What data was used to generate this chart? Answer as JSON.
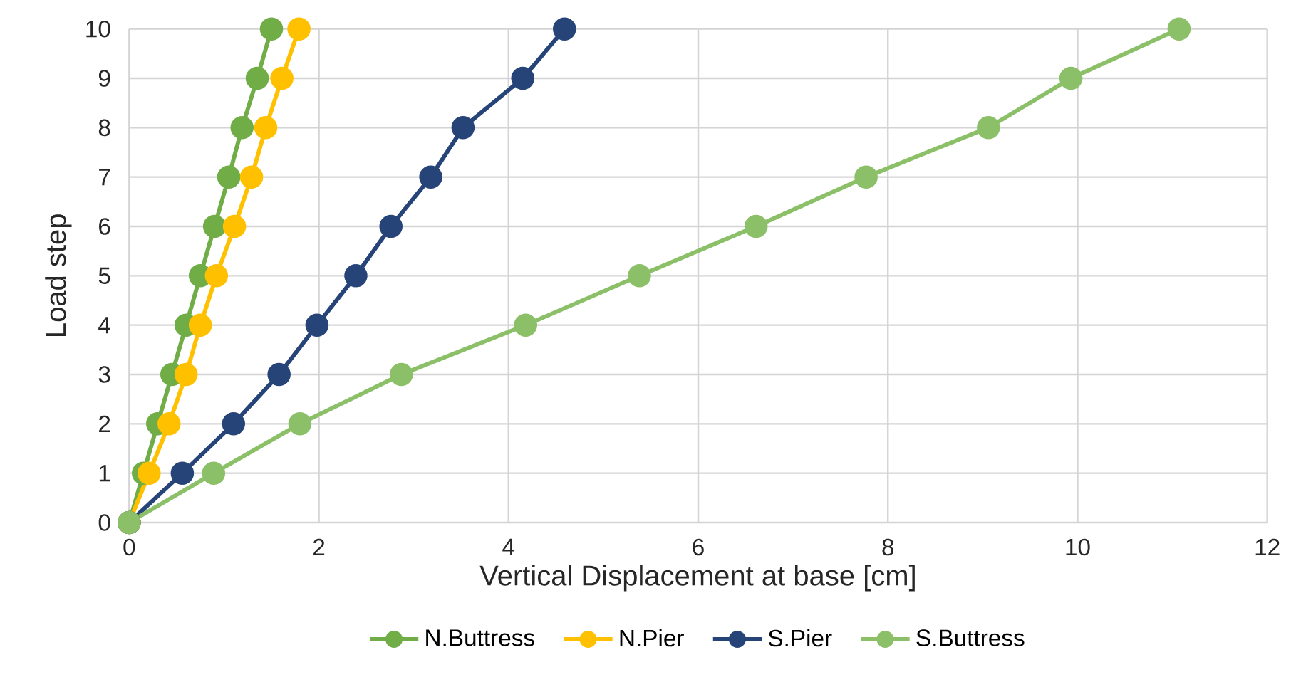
{
  "chart_data": {
    "type": "line",
    "xlabel": "Vertical Displacement at base [cm]",
    "ylabel": "Load step",
    "xlim": [
      0,
      12
    ],
    "xticks": [
      0,
      2,
      4,
      6,
      8,
      10,
      12
    ],
    "ylim": [
      0,
      10
    ],
    "yticks": [
      0,
      1,
      2,
      3,
      4,
      5,
      6,
      7,
      8,
      9,
      10
    ],
    "grid": true,
    "legend": "bottom",
    "marker": "circle",
    "line_style": "solid",
    "series": [
      {
        "name": "N.Buttress",
        "color": "#70ad47",
        "x": [
          0,
          0.15,
          0.3,
          0.45,
          0.6,
          0.75,
          0.9,
          1.05,
          1.19,
          1.35,
          1.5
        ],
        "values": [
          0,
          1,
          2,
          3,
          4,
          5,
          6,
          7,
          8,
          9,
          10
        ]
      },
      {
        "name": "N.Pier",
        "color": "#ffc000",
        "x": [
          0,
          0.21,
          0.42,
          0.6,
          0.75,
          0.92,
          1.11,
          1.29,
          1.44,
          1.61,
          1.79
        ],
        "values": [
          0,
          1,
          2,
          3,
          4,
          5,
          6,
          7,
          8,
          9,
          10
        ]
      },
      {
        "name": "S.Pier",
        "color": "#264478",
        "x": [
          0,
          0.56,
          1.1,
          1.58,
          1.98,
          2.39,
          2.76,
          3.18,
          3.52,
          4.15,
          4.59
        ],
        "values": [
          0,
          1,
          2,
          3,
          4,
          5,
          6,
          7,
          8,
          9,
          10
        ]
      },
      {
        "name": "S.Buttress",
        "color": "#8cc068",
        "x": [
          0,
          0.89,
          1.8,
          2.87,
          4.18,
          5.38,
          6.61,
          7.77,
          9.06,
          9.93,
          11.07
        ],
        "values": [
          0,
          1,
          2,
          3,
          4,
          5,
          6,
          7,
          8,
          9,
          10
        ]
      }
    ]
  }
}
